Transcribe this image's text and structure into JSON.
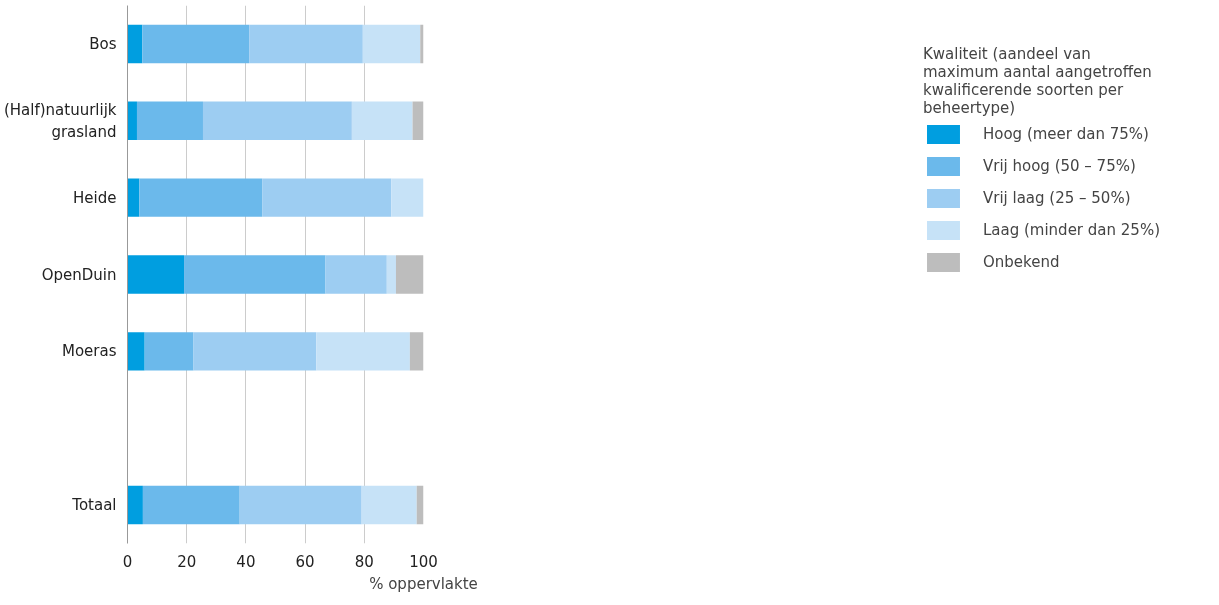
{
  "chart_data": {
    "type": "bar",
    "orientation": "horizontal",
    "stacked": true,
    "categories": [
      "Bos",
      "(Half)natuurlijk grasland",
      "Heide",
      "OpenDuin",
      "Moeras",
      null,
      "Totaal"
    ],
    "series": [
      {
        "name": "Hoog (meer dan 75%)",
        "color": "#009ee0",
        "values": [
          5.0,
          3.2,
          4.0,
          19.1,
          5.8,
          null,
          5.2
        ]
      },
      {
        "name": "Vrij hoog (50 – 75%)",
        "color": "#6bb9eb",
        "values": [
          36.1,
          22.3,
          41.5,
          47.8,
          16.5,
          null,
          32.7
        ]
      },
      {
        "name": "Vrij laag (25 – 50%)",
        "color": "#9dcdf2",
        "values": [
          38.4,
          50.3,
          43.6,
          20.7,
          41.5,
          null,
          41.2
        ]
      },
      {
        "name": "Laag (minder dan 25%)",
        "color": "#c6e2f7",
        "values": [
          19.4,
          20.5,
          10.9,
          3.1,
          31.6,
          null,
          18.6
        ]
      },
      {
        "name": "Onbekend",
        "color": "#bdbdbd",
        "values": [
          1.1,
          3.7,
          null,
          9.3,
          4.6,
          null,
          2.3
        ]
      }
    ],
    "xlim": [
      0,
      100
    ],
    "xticks": [
      0,
      20,
      40,
      60,
      80,
      100
    ],
    "xlabel": "% oppervlakte",
    "legend_title": "Kwaliteit (aandeel van maximum aantal aangetroffen kwalificerende soorten per beheertype)",
    "legend": "right",
    "grid": "x"
  }
}
